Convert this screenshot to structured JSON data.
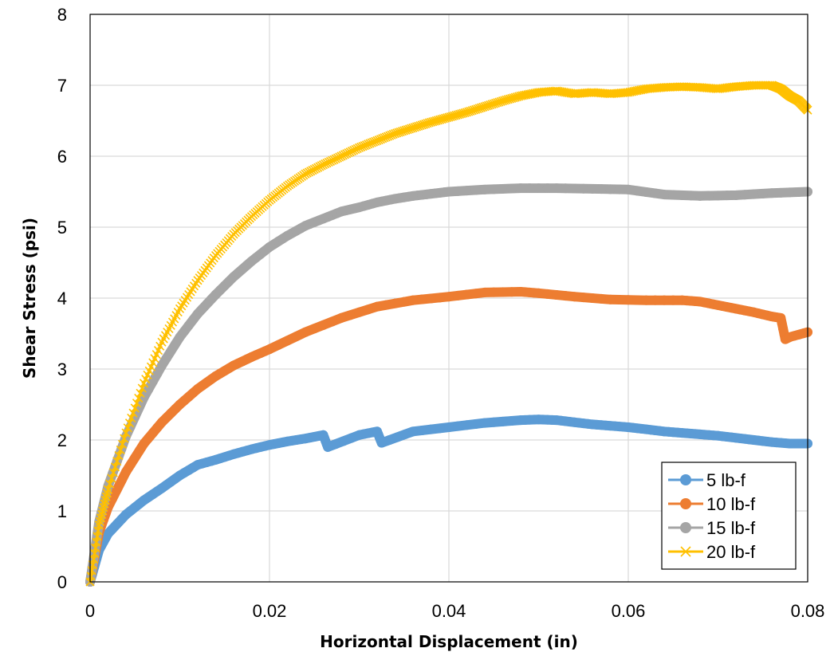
{
  "chart_data": {
    "type": "scatter",
    "xlabel": "Horizontal Displacement (in)",
    "ylabel": "Shear Stress (psi)",
    "xlim": [
      0,
      0.08
    ],
    "ylim": [
      0,
      8
    ],
    "xticks": [
      0,
      0.02,
      0.04,
      0.06,
      0.08
    ],
    "xtick_labels": [
      "0",
      "0.02",
      "0.04",
      "0.06",
      "0.08"
    ],
    "yticks": [
      0,
      1,
      2,
      3,
      4,
      5,
      6,
      7,
      8
    ],
    "ytick_labels": [
      "0",
      "1",
      "2",
      "3",
      "4",
      "5",
      "6",
      "7",
      "8"
    ],
    "grid": true,
    "legend_position": "bottom-right",
    "series": [
      {
        "name": "5 lb-f",
        "color": "#5B9BD5",
        "marker": "circle",
        "x": [
          0,
          0.001,
          0.002,
          0.004,
          0.006,
          0.008,
          0.01,
          0.012,
          0.014,
          0.016,
          0.018,
          0.02,
          0.022,
          0.024,
          0.026,
          0.0265,
          0.03,
          0.032,
          0.0325,
          0.036,
          0.04,
          0.044,
          0.048,
          0.05,
          0.052,
          0.054,
          0.056,
          0.058,
          0.06,
          0.062,
          0.064,
          0.066,
          0.068,
          0.07,
          0.072,
          0.074,
          0.076,
          0.078,
          0.08
        ],
        "y": [
          0,
          0.45,
          0.68,
          0.95,
          1.15,
          1.32,
          1.5,
          1.65,
          1.72,
          1.8,
          1.87,
          1.93,
          1.98,
          2.02,
          2.07,
          1.9,
          2.07,
          2.12,
          1.96,
          2.12,
          2.18,
          2.24,
          2.28,
          2.29,
          2.28,
          2.25,
          2.22,
          2.2,
          2.18,
          2.15,
          2.12,
          2.1,
          2.08,
          2.06,
          2.03,
          2.0,
          1.97,
          1.95,
          1.95
        ]
      },
      {
        "name": "10 lb-f",
        "color": "#ED7D31",
        "marker": "circle",
        "x": [
          0,
          0.001,
          0.002,
          0.004,
          0.006,
          0.008,
          0.01,
          0.012,
          0.014,
          0.016,
          0.018,
          0.02,
          0.024,
          0.028,
          0.032,
          0.036,
          0.04,
          0.044,
          0.048,
          0.05,
          0.054,
          0.058,
          0.062,
          0.066,
          0.068,
          0.07,
          0.072,
          0.074,
          0.076,
          0.077,
          0.0775,
          0.078,
          0.08
        ],
        "y": [
          0,
          0.7,
          1.05,
          1.55,
          1.95,
          2.25,
          2.5,
          2.72,
          2.9,
          3.05,
          3.17,
          3.28,
          3.52,
          3.72,
          3.88,
          3.97,
          4.02,
          4.08,
          4.09,
          4.07,
          4.02,
          3.98,
          3.97,
          3.97,
          3.95,
          3.9,
          3.85,
          3.8,
          3.74,
          3.72,
          3.42,
          3.45,
          3.52
        ]
      },
      {
        "name": "15 lb-f",
        "color": "#A5A5A5",
        "marker": "circle",
        "x": [
          0,
          0.001,
          0.002,
          0.004,
          0.006,
          0.008,
          0.01,
          0.012,
          0.014,
          0.016,
          0.018,
          0.02,
          0.022,
          0.024,
          0.026,
          0.028,
          0.03,
          0.032,
          0.034,
          0.036,
          0.038,
          0.04,
          0.044,
          0.048,
          0.052,
          0.056,
          0.06,
          0.064,
          0.068,
          0.072,
          0.076,
          0.08
        ],
        "y": [
          0,
          0.85,
          1.35,
          2.05,
          2.6,
          3.05,
          3.45,
          3.78,
          4.05,
          4.3,
          4.52,
          4.72,
          4.88,
          5.02,
          5.12,
          5.22,
          5.28,
          5.35,
          5.4,
          5.44,
          5.47,
          5.5,
          5.53,
          5.55,
          5.55,
          5.54,
          5.53,
          5.46,
          5.44,
          5.45,
          5.48,
          5.5
        ]
      },
      {
        "name": "20 lb-f",
        "color": "#FFC000",
        "marker": "x",
        "x": [
          0,
          0.001,
          0.002,
          0.004,
          0.006,
          0.008,
          0.01,
          0.012,
          0.014,
          0.016,
          0.018,
          0.02,
          0.022,
          0.024,
          0.026,
          0.028,
          0.03,
          0.032,
          0.034,
          0.036,
          0.038,
          0.04,
          0.042,
          0.044,
          0.046,
          0.048,
          0.05,
          0.052,
          0.054,
          0.056,
          0.058,
          0.06,
          0.062,
          0.064,
          0.066,
          0.068,
          0.07,
          0.072,
          0.074,
          0.076,
          0.077,
          0.078,
          0.079,
          0.08
        ],
        "y": [
          0,
          0.8,
          1.3,
          2.1,
          2.8,
          3.38,
          3.85,
          4.25,
          4.6,
          4.9,
          5.15,
          5.38,
          5.58,
          5.75,
          5.88,
          6.0,
          6.12,
          6.22,
          6.32,
          6.4,
          6.48,
          6.55,
          6.62,
          6.7,
          6.78,
          6.85,
          6.9,
          6.92,
          6.88,
          6.9,
          6.88,
          6.9,
          6.95,
          6.97,
          6.98,
          6.97,
          6.95,
          6.98,
          7.0,
          7.0,
          6.95,
          6.85,
          6.78,
          6.65
        ]
      }
    ]
  }
}
